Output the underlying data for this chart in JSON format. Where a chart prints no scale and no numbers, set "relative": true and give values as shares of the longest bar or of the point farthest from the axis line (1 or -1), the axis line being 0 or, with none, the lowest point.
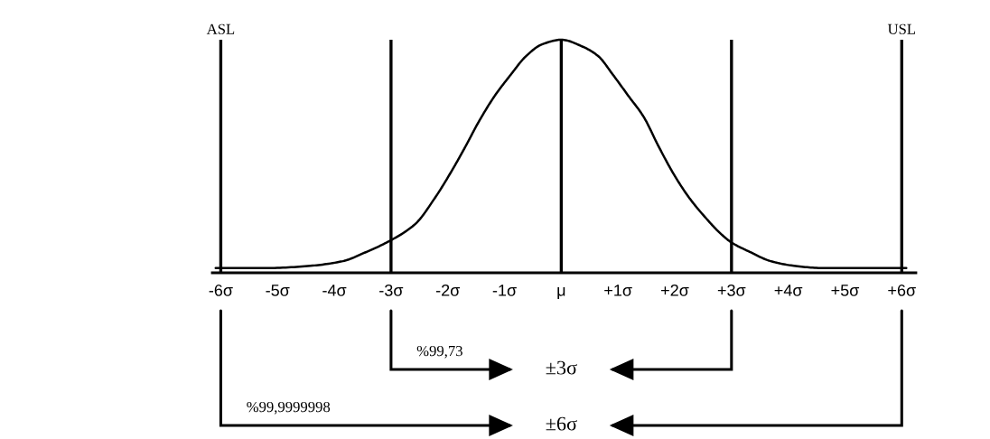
{
  "chart_data": {
    "type": "line",
    "relative": true,
    "tick_labels": "x",
    "series": [
      {
        "color": "#000000",
        "x": [
          -6.09,
          -5.2,
          -4.42,
          -3.85,
          -3.43,
          -3.0,
          -2.57,
          -2.23,
          -1.9,
          -1.67,
          -1.45,
          -1.17,
          -0.89,
          -0.62,
          -0.34,
          0,
          0.38,
          0.65,
          0.91,
          1.18,
          1.45,
          1.72,
          1.99,
          2.26,
          2.53,
          2.8,
          3.0,
          3.32,
          3.69,
          4.1,
          4.63,
          5.15,
          6.08
        ],
        "values": [
          0.02,
          0.02,
          0.03,
          0.05,
          0.09,
          0.14,
          0.21,
          0.32,
          0.45,
          0.55,
          0.65,
          0.76,
          0.85,
          0.93,
          0.98,
          1.0,
          0.97,
          0.93,
          0.85,
          0.76,
          0.67,
          0.54,
          0.42,
          0.32,
          0.24,
          0.17,
          0.13,
          0.09,
          0.05,
          0.03,
          0.02,
          0.02,
          0.02
        ]
      }
    ],
    "xlim": [
      -6.15,
      6.25
    ],
    "xticks": [
      {
        "value": -6,
        "label": "-6σ"
      },
      {
        "value": -5,
        "label": "-5σ"
      },
      {
        "value": -4,
        "label": "-4σ"
      },
      {
        "value": -3,
        "label": "-3σ"
      },
      {
        "value": -2,
        "label": "-2σ"
      },
      {
        "value": -1,
        "label": "-1σ"
      },
      {
        "value": 0,
        "label": "μ"
      },
      {
        "value": 1,
        "label": "+1σ"
      },
      {
        "value": 2,
        "label": "+2σ"
      },
      {
        "value": 3,
        "label": "+3σ"
      },
      {
        "value": 4,
        "label": "+4σ"
      },
      {
        "value": 5,
        "label": "+5σ"
      },
      {
        "value": 6,
        "label": "+6σ"
      }
    ],
    "ref_lines": [
      {
        "axis": "x",
        "value": -6,
        "label": "ASL",
        "color": "#000000"
      },
      {
        "axis": "x",
        "value": -3,
        "color": "#000000"
      },
      {
        "axis": "x",
        "value": 0,
        "color": "#000000"
      },
      {
        "axis": "x",
        "value": 3,
        "color": "#000000"
      },
      {
        "axis": "x",
        "value": 6,
        "label": "USL",
        "color": "#000000"
      }
    ],
    "annotations": [
      "%99,73",
      "±3σ",
      "%99,9999998",
      "±6σ"
    ]
  }
}
